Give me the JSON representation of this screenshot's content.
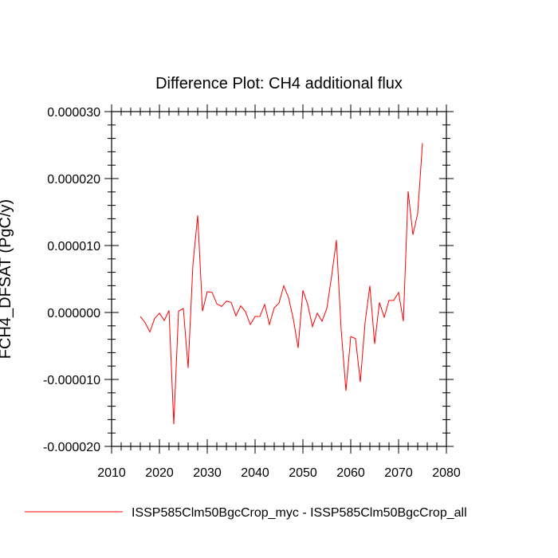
{
  "chart_data": {
    "type": "line",
    "title": "Difference Plot: CH4 additional flux",
    "xlabel": "",
    "ylabel": "FCH4_DFSAT  (PgC/y)",
    "xlim": [
      2010,
      2080
    ],
    "ylim": [
      -2e-05,
      3e-05
    ],
    "x_ticks": [
      "2010",
      "2020",
      "2030",
      "2040",
      "2050",
      "2060",
      "2070",
      "2080"
    ],
    "y_ticks": [
      "-0.000020",
      "-0.000010",
      "0.000000",
      "0.000010",
      "0.000020",
      "0.000030"
    ],
    "grid": false,
    "legend_position": "bottom",
    "series": [
      {
        "name": "ISSP585Clm50BgcCrop_myc - ISSP585Clm50BgcCrop_all",
        "color": "#ff0000",
        "x": [
          2016,
          2017,
          2018,
          2019,
          2020,
          2021,
          2022,
          2023,
          2024,
          2025,
          2026,
          2027,
          2028,
          2029,
          2030,
          2031,
          2032,
          2033,
          2034,
          2035,
          2036,
          2037,
          2038,
          2039,
          2040,
          2041,
          2042,
          2043,
          2044,
          2045,
          2046,
          2047,
          2048,
          2049,
          2050,
          2051,
          2052,
          2053,
          2054,
          2055,
          2056,
          2057,
          2058,
          2059,
          2060,
          2061,
          2062,
          2063,
          2064,
          2065,
          2066,
          2067,
          2068,
          2069,
          2070,
          2071,
          2072,
          2073,
          2074,
          2075
        ],
        "y": [
          -6e-07,
          -1.5e-06,
          -2.9e-06,
          -9e-07,
          -1e-07,
          -1.2e-06,
          3e-07,
          -1.67e-05,
          2e-07,
          6e-07,
          -8.3e-06,
          7.1e-06,
          1.45e-05,
          2e-07,
          3.1e-06,
          3e-06,
          1.3e-06,
          9e-07,
          1.7e-06,
          1.5e-06,
          -5e-07,
          1e-06,
          1e-07,
          -1.8e-06,
          -6e-07,
          -6e-07,
          1.2e-06,
          -1.8e-06,
          7e-07,
          1.4e-06,
          4e-06,
          2.2e-06,
          -1e-06,
          -5.3e-06,
          3.3e-06,
          1.2e-06,
          -2.1e-06,
          -1e-07,
          -1.3e-06,
          6e-07,
          5.4e-06,
          1.08e-05,
          -2.6e-06,
          -1.17e-05,
          -3.6e-06,
          -3.9e-06,
          -1.04e-05,
          -1.5e-06,
          4e-06,
          -4.7e-06,
          1.5e-06,
          -7e-07,
          1.8e-06,
          1.8e-06,
          3e-06,
          -1.3e-06,
          1.81e-05,
          1.16e-05,
          1.48e-05,
          2.53e-05
        ]
      }
    ]
  }
}
